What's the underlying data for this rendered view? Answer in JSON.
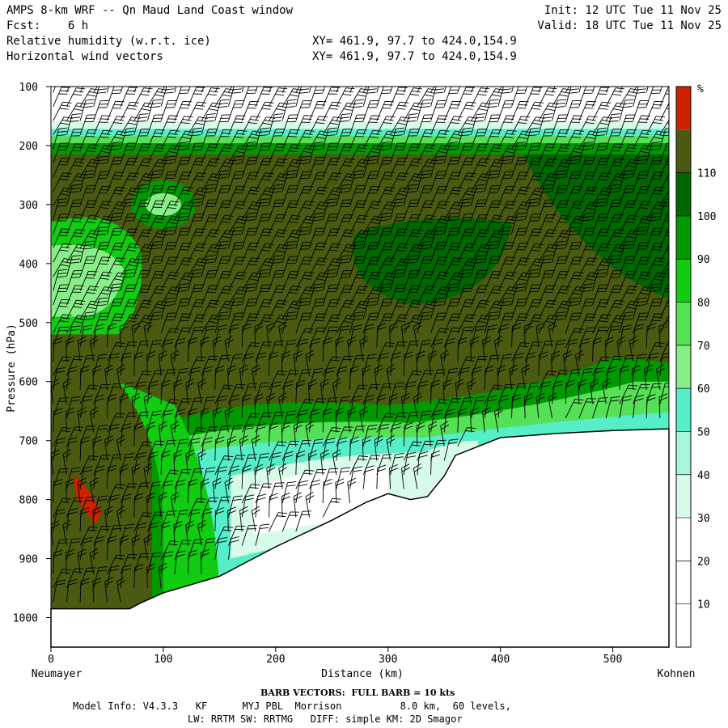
{
  "header": {
    "title": "AMPS 8-km WRF -- Qn Maud Land Coast window",
    "fcst": "Fcst:    6 h",
    "field1": "Relative humidity (w.r.t. ice)",
    "field2": "Horizontal wind vectors",
    "xy1": "XY= 461.9, 97.7 to 424.0,154.9",
    "xy2": "XY= 461.9, 97.7 to 424.0,154.9",
    "init": "Init: 12 UTC Tue 11 Nov 25",
    "valid": "Valid: 18 UTC Tue 11 Nov 25"
  },
  "footer": {
    "barb_note": "BARB VECTORS:  FULL BARB = 10 kts",
    "model_info_1": "Model Info: V4.3.3   KF      MYJ PBL  Morrison          8.0 km,  60 levels,",
    "model_info_2": "LW: RRTM SW: RRTMG   DIFF: simple KM: 2D Smagor"
  },
  "chart_data": {
    "type": "heatmap",
    "xlabel": "Distance (km)",
    "ylabel": "Pressure (hPa)",
    "x_left_label": "Neumayer",
    "x_right_label": "Kohnen",
    "xlim": [
      0,
      550
    ],
    "ylim": [
      1050,
      100
    ],
    "x_ticks": [
      "0",
      "100",
      "200",
      "300",
      "400",
      "500"
    ],
    "y_ticks": [
      "100",
      "200",
      "300",
      "400",
      "500",
      "600",
      "700",
      "800",
      "900",
      "1000"
    ],
    "colorbar": {
      "unit": "%",
      "levels": [
        "10",
        "20",
        "30",
        "40",
        "50",
        "60",
        "70",
        "80",
        "90",
        "100",
        "110"
      ],
      "colors": [
        "#ffffff",
        "#ffffff",
        "#ffffff",
        "#d8fae8",
        "#a6f5dc",
        "#55eec8",
        "#88ee88",
        "#55e055",
        "#11cc11",
        "#009900",
        "#006600",
        "#4a5a10",
        "#cc2200"
      ]
    },
    "terrain_surface": [
      {
        "x": 0,
        "p": 985
      },
      {
        "x": 70,
        "p": 985
      },
      {
        "x": 80,
        "p": 975
      },
      {
        "x": 100,
        "p": 958
      },
      {
        "x": 150,
        "p": 930
      },
      {
        "x": 200,
        "p": 880
      },
      {
        "x": 250,
        "p": 835
      },
      {
        "x": 280,
        "p": 805
      },
      {
        "x": 300,
        "p": 790
      },
      {
        "x": 320,
        "p": 800
      },
      {
        "x": 335,
        "p": 795
      },
      {
        "x": 350,
        "p": 760
      },
      {
        "x": 360,
        "p": 725
      },
      {
        "x": 400,
        "p": 695
      },
      {
        "x": 450,
        "p": 688
      },
      {
        "x": 500,
        "p": 683
      },
      {
        "x": 550,
        "p": 680
      }
    ]
  }
}
